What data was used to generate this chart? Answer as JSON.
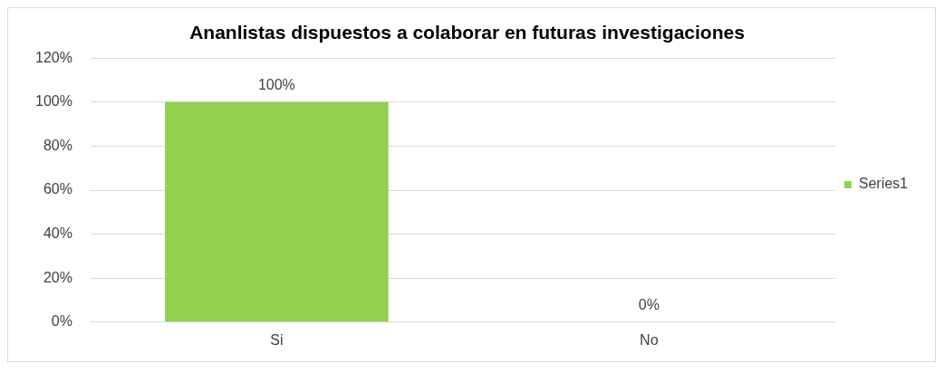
{
  "chart_data": {
    "type": "bar",
    "title": "Ananlistas dispuestos a colaborar en futuras investigaciones",
    "categories": [
      "Si",
      "No"
    ],
    "series": [
      {
        "name": "Series1",
        "color": "#92d050",
        "values": [
          100,
          0
        ],
        "value_labels": [
          "100%",
          "0%"
        ]
      }
    ],
    "ylim": [
      0,
      120
    ],
    "yticks": [
      {
        "value": 0,
        "label": "0%"
      },
      {
        "value": 20,
        "label": "20%"
      },
      {
        "value": 40,
        "label": "40%"
      },
      {
        "value": 60,
        "label": "60%"
      },
      {
        "value": 80,
        "label": "80%"
      },
      {
        "value": 100,
        "label": "100%"
      },
      {
        "value": 120,
        "label": "120%"
      }
    ],
    "grid": "y",
    "legend": "right"
  }
}
